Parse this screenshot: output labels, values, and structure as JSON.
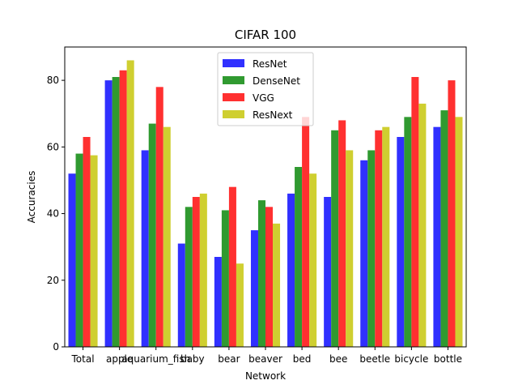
{
  "chart_data": {
    "type": "bar",
    "title": "CIFAR 100",
    "xlabel": "Network",
    "ylabel": "Accuracies",
    "ylim": [
      0,
      90
    ],
    "yticks": [
      0,
      20,
      40,
      60,
      80
    ],
    "grid": false,
    "legend_position": "upper center",
    "categories": [
      "Total",
      "apple",
      "aquarium_fish",
      "baby",
      "bear",
      "beaver",
      "bed",
      "bee",
      "beetle",
      "bicycle",
      "bottle"
    ],
    "series": [
      {
        "name": "ResNet",
        "color": "#3030ff",
        "values": [
          52,
          80,
          59,
          31,
          27,
          35,
          46,
          45,
          56,
          63,
          66
        ]
      },
      {
        "name": "DenseNet",
        "color": "#309a30",
        "values": [
          58,
          81,
          67,
          42,
          41,
          44,
          54,
          65,
          59,
          69,
          71
        ]
      },
      {
        "name": "VGG",
        "color": "#ff3030",
        "values": [
          63,
          83,
          78,
          45,
          48,
          42,
          69,
          68,
          65,
          81,
          80
        ]
      },
      {
        "name": "ResNext",
        "color": "#cfcf30",
        "values": [
          57.5,
          86,
          66,
          46,
          25,
          37,
          52,
          59,
          66,
          73,
          69
        ]
      }
    ]
  }
}
